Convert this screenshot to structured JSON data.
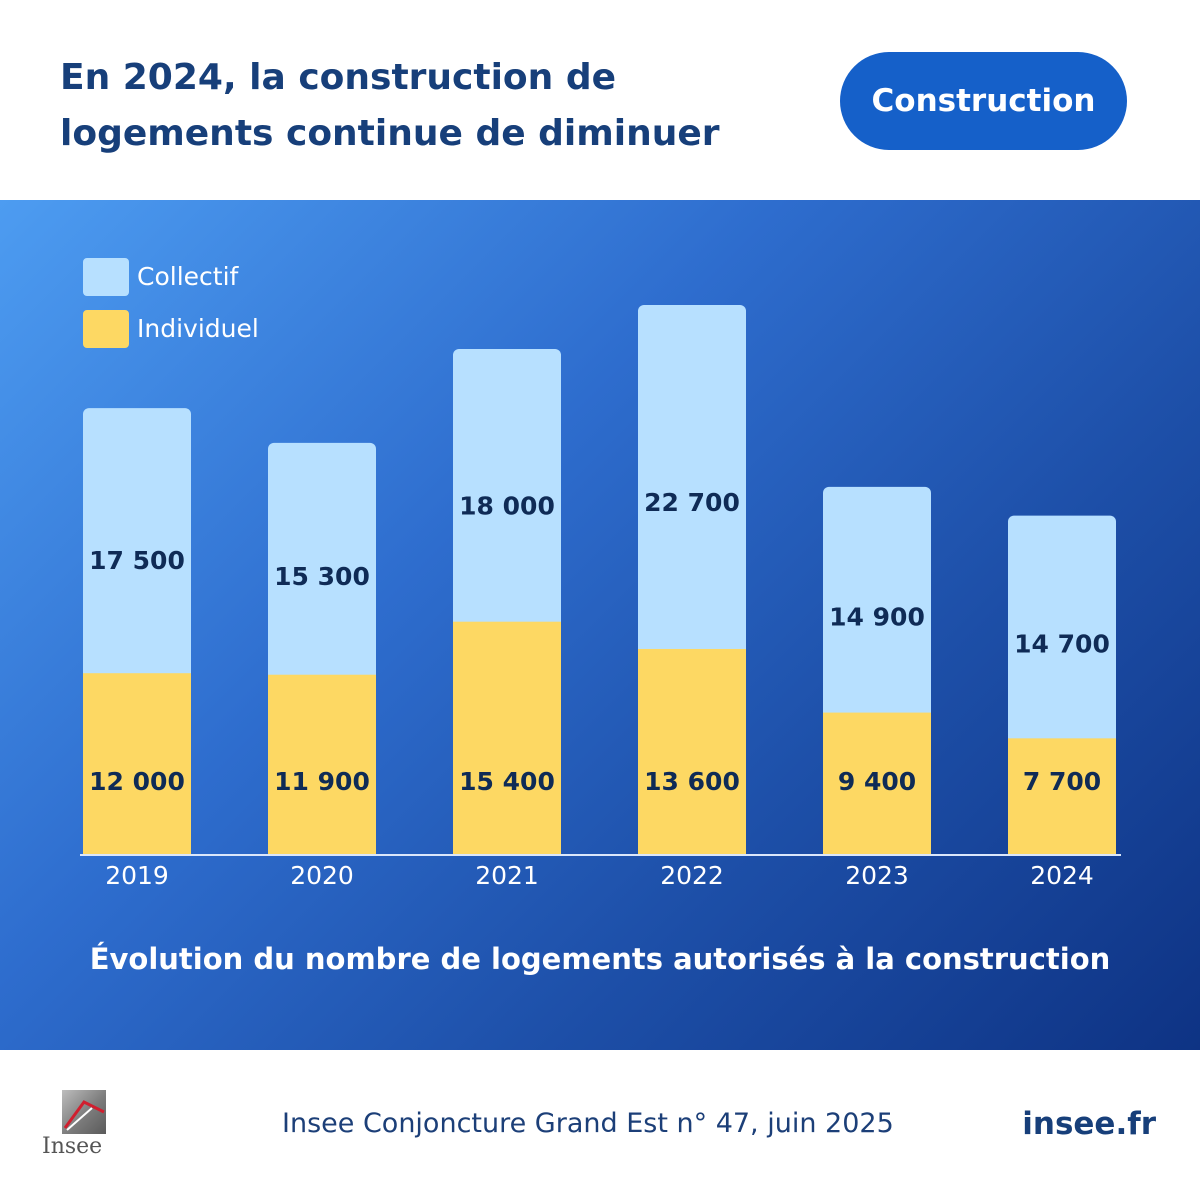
{
  "header": {
    "headline": "En 2024, la construction de logements continue de diminuer",
    "tag_label": "Construction"
  },
  "chart_data": {
    "type": "bar",
    "stacked": true,
    "title": "Évolution du nombre de logements autorisés à la construction",
    "categories": [
      "2019",
      "2020",
      "2021",
      "2022",
      "2023",
      "2024"
    ],
    "series": [
      {
        "name": "Individuel",
        "values": [
          12000,
          11900,
          15400,
          13600,
          9400,
          7700
        ],
        "labels": [
          "12 000",
          "11 900",
          "15 400",
          "13 600",
          "9 400",
          "7 700"
        ],
        "color": "#fdd863"
      },
      {
        "name": "Collectif",
        "values": [
          17500,
          15300,
          18000,
          22700,
          14900,
          14700
        ],
        "labels": [
          "17 500",
          "15 300",
          "18 000",
          "22 700",
          "14 900",
          "14 700"
        ],
        "color": "#b7e0ff"
      }
    ],
    "legend": [
      "Collectif",
      "Individuel"
    ],
    "legend_position": "top-left",
    "grid": false
  },
  "colors": {
    "individuel": "#fdd863",
    "collectif": "#b7e0ff",
    "label_text": "#0f2b56",
    "axis": "#dbe7fb",
    "tag_background": "#1560c9",
    "headline": "#173f7a"
  },
  "footer": {
    "logo_text": "Insee",
    "source": "Insee Conjoncture Grand Est n° 47, juin 2025",
    "site": "insee.fr"
  }
}
